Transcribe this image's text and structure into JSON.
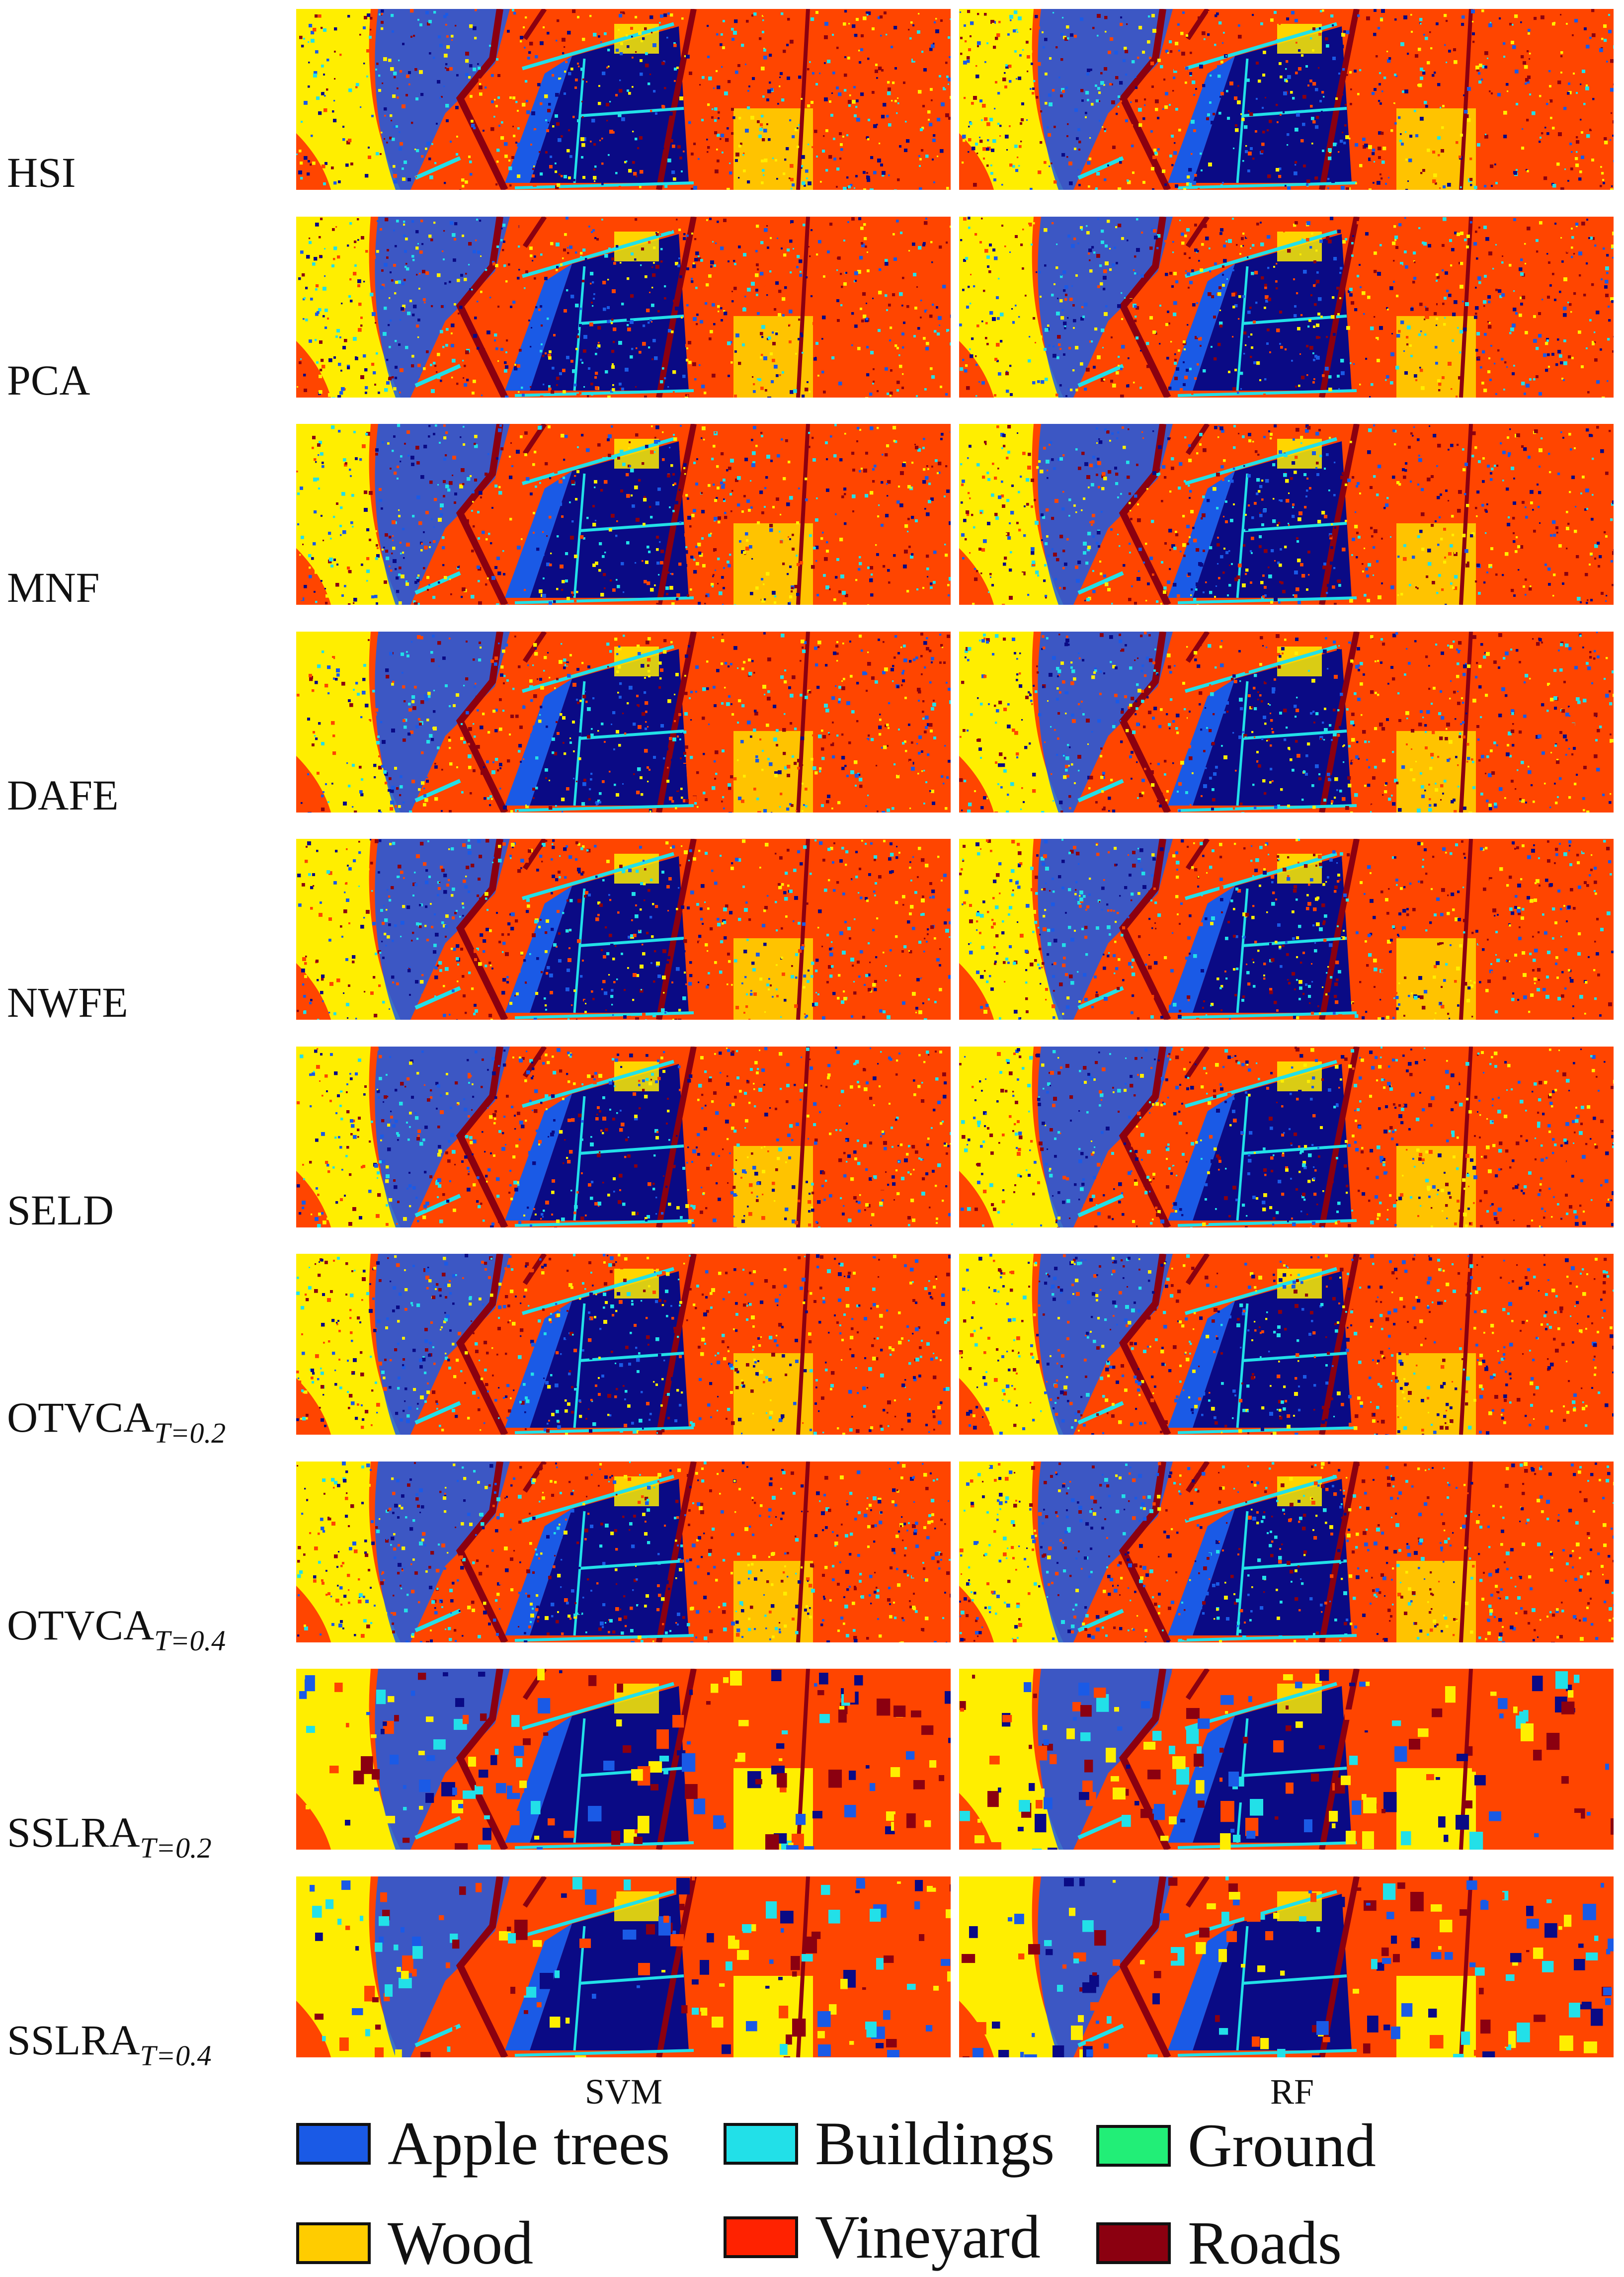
{
  "rows": [
    {
      "label": "HSI",
      "sub": ""
    },
    {
      "label": "PCA",
      "sub": ""
    },
    {
      "label": "MNF",
      "sub": ""
    },
    {
      "label": "DAFE",
      "sub": ""
    },
    {
      "label": "NWFE",
      "sub": ""
    },
    {
      "label": "SELD",
      "sub": ""
    },
    {
      "label": "OTVCA",
      "sub": "T=0.2"
    },
    {
      "label": "OTVCA",
      "sub": "T=0.4"
    },
    {
      "label": "SSLRA",
      "sub": "T=0.2"
    },
    {
      "label": "SSLRA",
      "sub": "T=0.4"
    }
  ],
  "columns": [
    "SVM",
    "RF"
  ],
  "legend": [
    {
      "label": "Apple trees",
      "color": "#1a5ae6"
    },
    {
      "label": "Buildings",
      "color": "#22e0e8"
    },
    {
      "label": "Ground",
      "color": "#22ee77"
    },
    {
      "label": "Wood",
      "color": "#ffcc00"
    },
    {
      "label": "Vineyard",
      "color": "#ff2200"
    },
    {
      "label": "Roads",
      "color": "#8b0010"
    }
  ],
  "map_colors": {
    "background": "#ff4500",
    "wood": "#ffee00",
    "apple": "#1a5ae6",
    "dark_apple": "#0a0a85",
    "buildings": "#22e0e8",
    "roads": "#8b0010"
  }
}
